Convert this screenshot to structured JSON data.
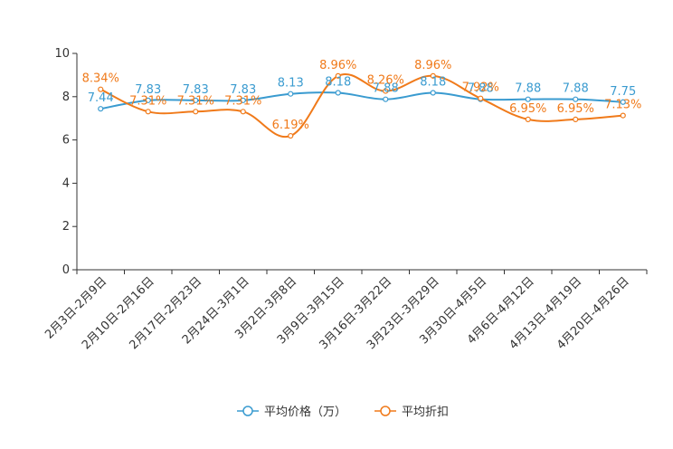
{
  "chart_data": {
    "type": "line",
    "categories": [
      "2月3日-2月9日",
      "2月10日-2月16日",
      "2月17日-2月23日",
      "2月24日-3月1日",
      "3月2日-3月8日",
      "3月9日-3月15日",
      "3月16日-3月22日",
      "3月23日-3月29日",
      "3月30日-4月5日",
      "4月6日-4月12日",
      "4月13日-4月19日",
      "4月20日-4月26日"
    ],
    "ylim": [
      0,
      10
    ],
    "yticks": [
      0,
      2,
      4,
      6,
      8,
      10
    ],
    "ytick_labels": [
      "0",
      "2",
      "4",
      "6",
      "8",
      "10"
    ],
    "series": [
      {
        "name": "平均价格（万）",
        "color": "#3a9bd0",
        "values": [
          7.44,
          7.83,
          7.83,
          7.83,
          8.13,
          8.18,
          7.88,
          8.18,
          7.88,
          7.88,
          7.88,
          7.75
        ],
        "labels": [
          "7.44",
          "7.83",
          "7.83",
          "7.83",
          "8.13",
          "8.18",
          "7.88",
          "8.18",
          "7.88",
          "7.88",
          "7.88",
          "7.75"
        ]
      },
      {
        "name": "平均折扣",
        "color": "#f07a1a",
        "values": [
          8.34,
          7.31,
          7.31,
          7.31,
          6.19,
          8.96,
          8.26,
          8.96,
          7.92,
          6.95,
          6.95,
          7.13
        ],
        "labels": [
          "8.34%",
          "7.31%",
          "7.31%",
          "7.31%",
          "6.19%",
          "8.96%",
          "8.26%",
          "8.96%",
          "7.92%",
          "6.95%",
          "6.95%",
          "7.13%"
        ]
      }
    ]
  }
}
